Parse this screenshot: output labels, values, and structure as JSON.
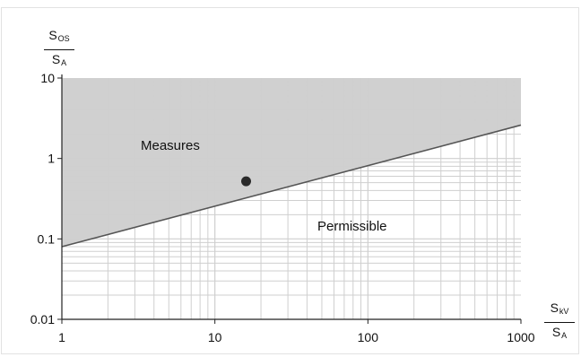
{
  "chart_data": {
    "type": "scatter",
    "title": "",
    "x_scale": "log",
    "y_scale": "log",
    "xlim": [
      1,
      1000
    ],
    "ylim": [
      0.01,
      10
    ],
    "x_ticks": [
      1,
      10,
      100,
      1000
    ],
    "x_tick_labels": [
      "1",
      "10",
      "100",
      "1000"
    ],
    "y_ticks": [
      0.01,
      0.1,
      1,
      10
    ],
    "y_tick_labels": [
      "0.01",
      "0.1",
      "1",
      "10"
    ],
    "grid": true,
    "ylabel": {
      "numerator": "S",
      "numerator_sub": "OS",
      "denominator": "S",
      "denominator_sub": "A"
    },
    "xlabel": {
      "numerator": "S",
      "numerator_sub": "kV",
      "denominator": "S",
      "denominator_sub": "A"
    },
    "boundary_line": {
      "x": [
        1,
        1000
      ],
      "y": [
        0.08,
        2.6
      ]
    },
    "regions": [
      {
        "label": "Measures",
        "position": "above-line",
        "fill": "#d0d0d0"
      },
      {
        "label": "Permissible",
        "position": "below-line",
        "fill": "#ffffff"
      }
    ],
    "points": [
      {
        "x": 16,
        "y": 0.52
      }
    ],
    "colors": {
      "axis": "#222222",
      "grid": "#cfcfcf",
      "line": "#555555",
      "point": "#2a2a2a",
      "text": "#111111"
    }
  }
}
